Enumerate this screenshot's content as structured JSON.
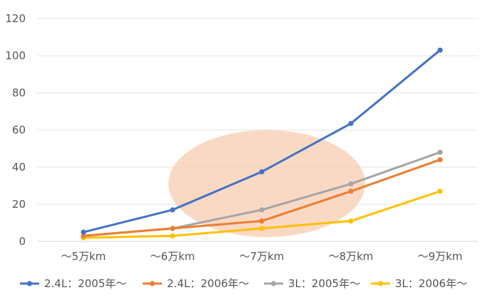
{
  "chart_data": {
    "type": "line",
    "categories": [
      "～5万km",
      "～6万km",
      "～7万km",
      "～8万km",
      "～9万km"
    ],
    "ylim": [
      0,
      120
    ],
    "yticks": [
      0,
      20,
      40,
      60,
      80,
      100,
      120
    ],
    "grid": true,
    "legend_position": "bottom",
    "series": [
      {
        "name": "2.4L：2005年～",
        "color": "#4472C4",
        "values": [
          5,
          17,
          37.5,
          63.5,
          103
        ]
      },
      {
        "name": "2.4L：2006年～",
        "color": "#ED7D31",
        "values": [
          3,
          7,
          11,
          27,
          44
        ]
      },
      {
        "name": "3L：2005年～",
        "color": "#A5A5A5",
        "values": [
          3,
          7,
          17,
          31,
          48
        ]
      },
      {
        "name": "3L：2006年～",
        "color": "#FFC000",
        "values": [
          2,
          3,
          7,
          11,
          27
        ]
      }
    ],
    "annotation": {
      "shape": "ellipse",
      "color": "#F8CBAD"
    }
  }
}
